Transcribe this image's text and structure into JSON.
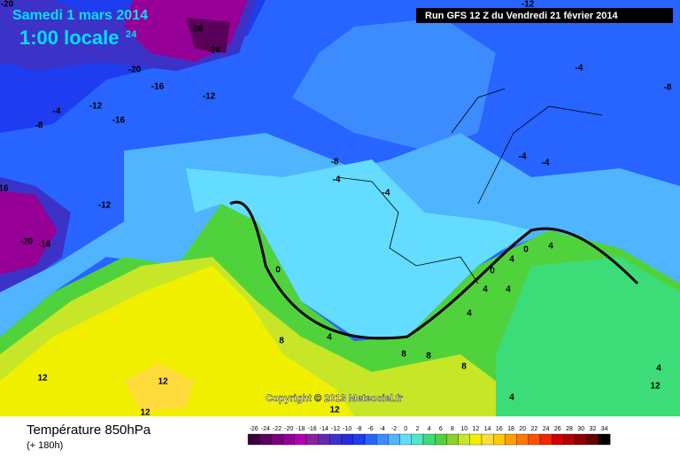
{
  "header": {
    "date": "Samedi 1 mars 2014",
    "time": "1:00 locale",
    "step": "24",
    "run": "Run GFS 12 Z du Vendredi 21 février 2014"
  },
  "copyright": "Copyright © 2013 Meteociel.fr",
  "footer": {
    "title": "Température 850hPa",
    "lead": "(+ 180h)"
  },
  "contour_labels": [
    "-20",
    "-28",
    "-28",
    "-20",
    "-16",
    "-12",
    "-12",
    "-4",
    "-16",
    "-8",
    "-8",
    "-4",
    "-12",
    "16",
    "-20",
    "-16",
    "-4",
    "-4",
    "-4",
    "-4",
    "-8",
    "-12",
    "0",
    "0",
    "4",
    "0",
    "4",
    "4",
    "4",
    "4",
    "8",
    "4",
    "8",
    "8",
    "8",
    "12",
    "12",
    "12",
    "12",
    "4",
    "12",
    "4"
  ],
  "scale": {
    "values": [
      -26,
      -24,
      -22,
      -20,
      -18,
      -16,
      -14,
      -12,
      -10,
      -8,
      -6,
      -4,
      -2,
      0,
      2,
      4,
      6,
      8,
      10,
      12,
      14,
      16,
      18,
      20,
      22,
      24,
      26,
      28,
      30,
      32,
      34
    ],
    "colors": [
      "#3c003c",
      "#5a005a",
      "#780078",
      "#960096",
      "#b400b4",
      "#8c1ea0",
      "#6428b4",
      "#3c32c8",
      "#2828dc",
      "#1e3cf0",
      "#2864ff",
      "#3c8cff",
      "#50b4ff",
      "#64dcff",
      "#50e6c8",
      "#3cdc78",
      "#50d23c",
      "#8cd228",
      "#c8e628",
      "#f0f000",
      "#ffdc3c",
      "#ffc800",
      "#ffa000",
      "#ff7800",
      "#ff5000",
      "#f02800",
      "#d20000",
      "#b40000",
      "#8c0000",
      "#640000",
      "#000000"
    ]
  }
}
